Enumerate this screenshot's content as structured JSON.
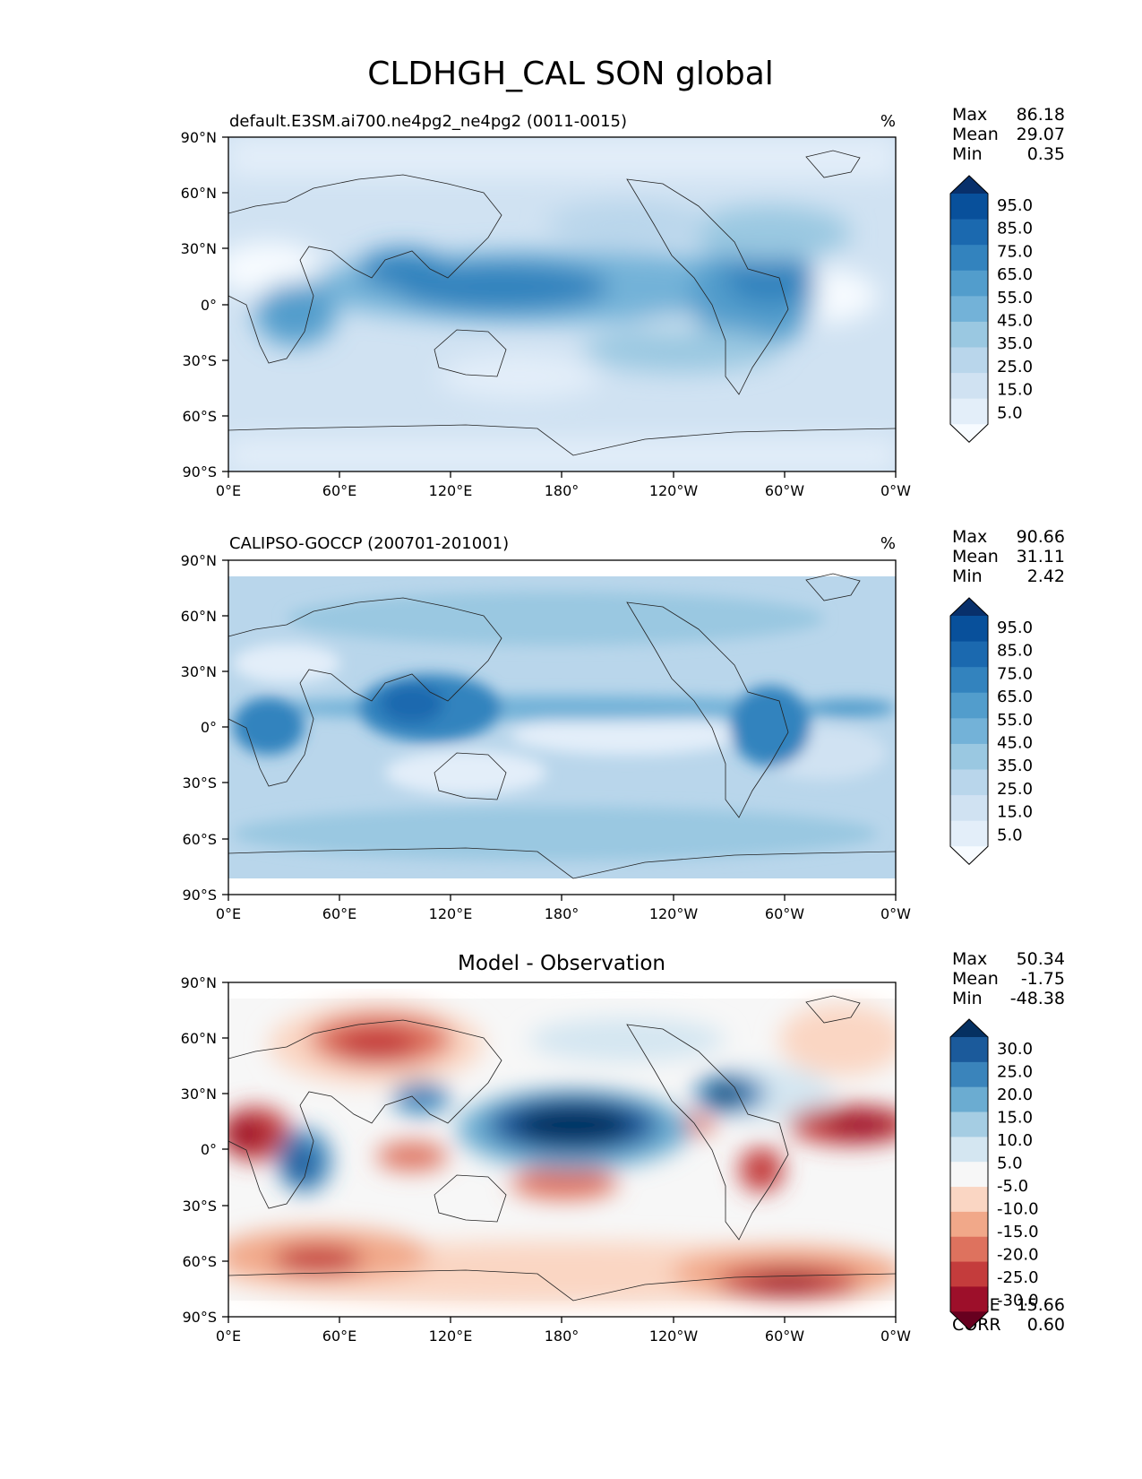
{
  "figure": {
    "title": "CLDHGH_CAL SON global"
  },
  "colors": {
    "seq": [
      "#f7fbff",
      "#e3eef9",
      "#d0e2f2",
      "#b9d6eb",
      "#9ac8e1",
      "#73b2d8",
      "#529dcc",
      "#3383be",
      "#1b69af",
      "#08509b",
      "#08306b"
    ],
    "div": [
      "#67001f",
      "#9d0f2a",
      "#c43c3c",
      "#de725e",
      "#f1a889",
      "#fad6c3",
      "#f7f7f7",
      "#d4e6f1",
      "#a5cde3",
      "#6bacd1",
      "#3a84bb",
      "#1b5a9b",
      "#053061"
    ]
  },
  "chart_data": [
    {
      "type": "heatmap",
      "id": "model",
      "subtitle_left": "default.E3SM.ai700.ne4pg2_ne4pg2 (0011-0015)",
      "units": "%",
      "stats": [
        {
          "label": "Max",
          "value": "86.18"
        },
        {
          "label": "Mean",
          "value": "29.07"
        },
        {
          "label": "Min",
          "value": "0.35"
        }
      ],
      "colorbar_labels": [
        "95.0",
        "85.0",
        "75.0",
        "65.0",
        "55.0",
        "45.0",
        "35.0",
        "25.0",
        "15.0",
        "5.0"
      ],
      "colorbar_extend": "both",
      "xticks": [
        "0°E",
        "60°E",
        "120°E",
        "180°",
        "120°W",
        "60°W",
        "0°W"
      ],
      "yticks": [
        "90°N",
        "60°N",
        "30°N",
        "0°",
        "30°S",
        "60°S",
        "90°S"
      ],
      "xlim": [
        0,
        360
      ],
      "ylim": [
        -90,
        90
      ],
      "colormap": "sequential-blues",
      "lat_range_data": [
        -90,
        90
      ]
    },
    {
      "type": "heatmap",
      "id": "obs",
      "subtitle_left": "CALIPSO-GOCCP (200701-201001)",
      "units": "%",
      "stats": [
        {
          "label": "Max",
          "value": "90.66"
        },
        {
          "label": "Mean",
          "value": "31.11"
        },
        {
          "label": "Min",
          "value": "2.42"
        }
      ],
      "colorbar_labels": [
        "95.0",
        "85.0",
        "75.0",
        "65.0",
        "55.0",
        "45.0",
        "35.0",
        "25.0",
        "15.0",
        "5.0"
      ],
      "colorbar_extend": "both",
      "xticks": [
        "0°E",
        "60°E",
        "120°E",
        "180°",
        "120°W",
        "60°W",
        "0°W"
      ],
      "yticks": [
        "90°N",
        "60°N",
        "30°N",
        "0°",
        "30°S",
        "60°S",
        "90°S"
      ],
      "xlim": [
        0,
        360
      ],
      "ylim": [
        -90,
        90
      ],
      "colormap": "sequential-blues",
      "lat_range_data": [
        -82,
        82
      ]
    },
    {
      "type": "heatmap",
      "id": "diff",
      "title": "Model - Observation",
      "stats": [
        {
          "label": "Max",
          "value": "50.34"
        },
        {
          "label": "Mean",
          "value": "-1.75"
        },
        {
          "label": "Min",
          "value": "-48.38"
        }
      ],
      "extra_stats": [
        {
          "label": "RMSE",
          "value": "15.66"
        },
        {
          "label": "CORR",
          "value": "0.60"
        }
      ],
      "colorbar_labels": [
        "30.0",
        "25.0",
        "20.0",
        "15.0",
        "10.0",
        "5.0",
        "-5.0",
        "-10.0",
        "-15.0",
        "-20.0",
        "-25.0",
        "-30.0"
      ],
      "colorbar_extend": "both",
      "xticks": [
        "0°E",
        "60°E",
        "120°E",
        "180°",
        "120°W",
        "60°W",
        "0°W"
      ],
      "yticks": [
        "90°N",
        "60°N",
        "30°N",
        "0°",
        "30°S",
        "60°S",
        "90°S"
      ],
      "xlim": [
        0,
        360
      ],
      "ylim": [
        -90,
        90
      ],
      "colormap": "diverging-red-blue",
      "lat_range_data": [
        -82,
        82
      ]
    }
  ]
}
